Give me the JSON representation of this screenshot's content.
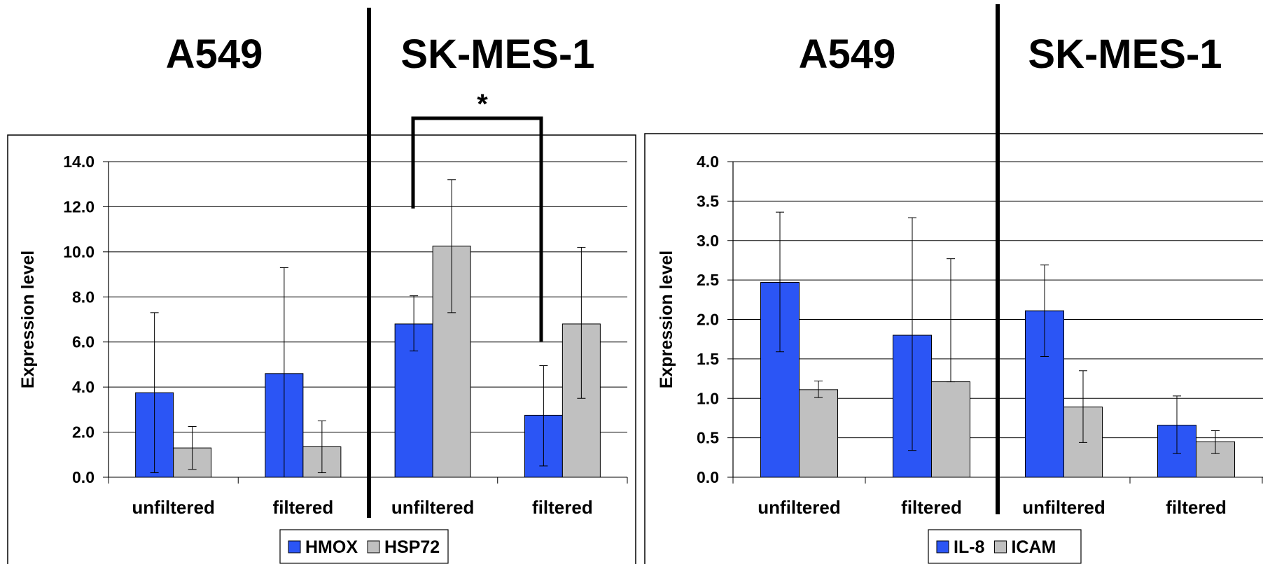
{
  "header_labels": [
    "A549",
    "SK-MES-1",
    "A549",
    "SK-MES-1"
  ],
  "significance_mark": "*",
  "colors": {
    "series1": "#2b55f5",
    "series2": "#c0c0c0",
    "grid": "#000000"
  },
  "chart_data": [
    {
      "type": "bar",
      "ylabel": "Expression level",
      "ylim": [
        0,
        14
      ],
      "yticks": [
        "0.0",
        "2.0",
        "4.0",
        "6.0",
        "8.0",
        "10.0",
        "12.0",
        "14.0"
      ],
      "categories": [
        "unfiltered",
        "filtered",
        "unfiltered",
        "filtered"
      ],
      "groups": [
        "A549",
        "A549",
        "SK-MES-1",
        "SK-MES-1"
      ],
      "series": [
        {
          "name": "HMOX",
          "values": [
            3.75,
            4.6,
            6.8,
            2.75
          ],
          "err_low": [
            0.2,
            0.0,
            5.6,
            0.5
          ],
          "err_high": [
            7.3,
            9.3,
            8.05,
            4.95
          ]
        },
        {
          "name": "HSP72",
          "values": [
            1.3,
            1.35,
            10.25,
            6.8
          ],
          "err_low": [
            0.35,
            0.2,
            7.3,
            3.5
          ],
          "err_high": [
            2.25,
            2.5,
            13.2,
            10.2
          ]
        }
      ],
      "legend": "bottom-center",
      "grid": true
    },
    {
      "type": "bar",
      "ylabel": "Expression level",
      "ylim": [
        0,
        4
      ],
      "yticks": [
        "0.0",
        "0.5",
        "1.0",
        "1.5",
        "2.0",
        "2.5",
        "3.0",
        "3.5",
        "4.0"
      ],
      "categories": [
        "unfiltered",
        "filtered",
        "unfiltered",
        "filtered"
      ],
      "groups": [
        "A549",
        "A549",
        "SK-MES-1",
        "SK-MES-1"
      ],
      "series": [
        {
          "name": "IL-8",
          "values": [
            2.47,
            1.8,
            2.11,
            0.66
          ],
          "err_low": [
            1.59,
            0.34,
            1.53,
            0.3
          ],
          "err_high": [
            3.36,
            3.29,
            2.69,
            1.03
          ]
        },
        {
          "name": "ICAM",
          "values": [
            1.11,
            1.21,
            0.89,
            0.45
          ],
          "err_low": [
            1.01,
            1.21,
            0.44,
            0.3
          ],
          "err_high": [
            1.22,
            2.77,
            1.35,
            0.59
          ]
        }
      ],
      "legend": "bottom-center",
      "grid": true
    }
  ]
}
